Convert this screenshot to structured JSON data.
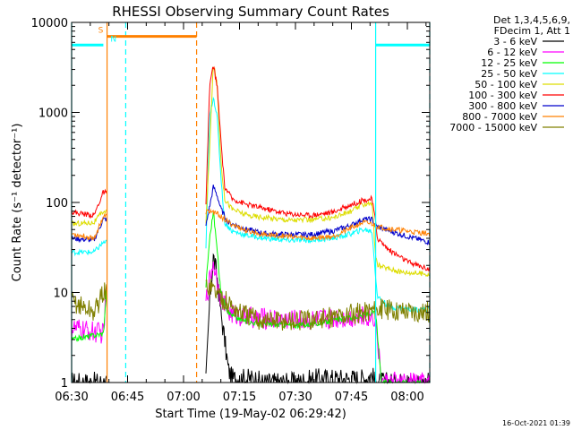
{
  "chart_data": {
    "type": "line",
    "title": "RHESSI Observing Summary Count Rates",
    "xlabel": "Start Time (19-May-02 06:29:42)",
    "ylabel": "Count Rate (s⁻¹ detector⁻¹)",
    "yscale": "log",
    "ylim": [
      1,
      10000
    ],
    "xlim_minutes_after_0630": [
      0,
      96
    ],
    "x_ticks": [
      {
        "label": "06:30",
        "m": 0
      },
      {
        "label": "06:45",
        "m": 15
      },
      {
        "label": "07:00",
        "m": 30
      },
      {
        "label": "07:15",
        "m": 45
      },
      {
        "label": "07:30",
        "m": 60
      },
      {
        "label": "07:45",
        "m": 75
      },
      {
        "label": "08:00",
        "m": 90
      }
    ],
    "y_ticks": [
      {
        "label": "1",
        "v": 1
      },
      {
        "label": "10",
        "v": 10
      },
      {
        "label": "100",
        "v": 100
      },
      {
        "label": "1000",
        "v": 1000
      },
      {
        "label": "10000",
        "v": 10000
      }
    ],
    "legend_header": [
      "Det 1,3,4,5,6,9,",
      "FDecim 1, Att 1"
    ],
    "legend_position": "right",
    "series": [
      {
        "name": "3 - 6 keV",
        "color": "#000000",
        "points": [
          [
            0,
            1
          ],
          [
            8.5,
            1
          ],
          [
            9.5,
            1
          ],
          [
            36,
            1
          ],
          [
            37,
            8
          ],
          [
            38,
            25
          ],
          [
            39,
            15
          ],
          [
            40,
            6
          ],
          [
            41,
            3
          ],
          [
            42,
            1.4
          ],
          [
            43,
            1.1
          ],
          [
            49,
            1.1
          ],
          [
            51,
            1
          ],
          [
            60,
            1
          ],
          [
            66,
            1.1
          ],
          [
            72,
            1.1
          ],
          [
            78,
            1.1
          ],
          [
            80.5,
            1.2
          ],
          [
            81.5,
            1
          ],
          [
            96,
            1
          ]
        ]
      },
      {
        "name": "6 - 12 keV",
        "color": "#ff00ff",
        "points": [
          [
            0,
            4
          ],
          [
            8.5,
            3.5
          ],
          [
            9.5,
            12
          ],
          [
            36,
            8
          ],
          [
            37,
            14
          ],
          [
            38,
            22
          ],
          [
            39,
            14
          ],
          [
            40,
            9
          ],
          [
            42,
            6
          ],
          [
            45,
            5.5
          ],
          [
            50,
            5.2
          ],
          [
            60,
            5
          ],
          [
            66,
            5
          ],
          [
            72,
            5.3
          ],
          [
            78,
            5.4
          ],
          [
            80.5,
            5.5
          ],
          [
            81.5,
            5.2
          ],
          [
            83,
            1
          ],
          [
            96,
            1
          ]
        ]
      },
      {
        "name": "12 - 25 keV",
        "color": "#00ff00",
        "points": [
          [
            0,
            3
          ],
          [
            8.5,
            3.5
          ],
          [
            9.5,
            12
          ],
          [
            36,
            12
          ],
          [
            37,
            40
          ],
          [
            38,
            80
          ],
          [
            39,
            30
          ],
          [
            40,
            10
          ],
          [
            42,
            6
          ],
          [
            45,
            5
          ],
          [
            50,
            4.5
          ],
          [
            60,
            4.3
          ],
          [
            66,
            4.5
          ],
          [
            72,
            5
          ],
          [
            78,
            5.5
          ],
          [
            80.5,
            6
          ],
          [
            81.5,
            6
          ],
          [
            83,
            1
          ],
          [
            96,
            1
          ]
        ]
      },
      {
        "name": "25 - 50 keV",
        "color": "#00ffff",
        "points": [
          [
            0,
            28
          ],
          [
            6,
            28
          ],
          [
            8.5,
            36
          ],
          [
            36,
            30
          ],
          [
            37,
            900
          ],
          [
            38,
            1500
          ],
          [
            39,
            900
          ],
          [
            40,
            200
          ],
          [
            41,
            60
          ],
          [
            43,
            48
          ],
          [
            47,
            43
          ],
          [
            52,
            40
          ],
          [
            58,
            38
          ],
          [
            64,
            38
          ],
          [
            70,
            40
          ],
          [
            75,
            45
          ],
          [
            78,
            50
          ],
          [
            80.5,
            48
          ],
          [
            81.5,
            15
          ],
          [
            82,
            9
          ],
          [
            85,
            7
          ],
          [
            90,
            6.5
          ],
          [
            96,
            6.5
          ]
        ]
      },
      {
        "name": "50 - 100 keV",
        "color": "#dddd00",
        "points": [
          [
            0,
            58
          ],
          [
            6,
            60
          ],
          [
            8.5,
            80
          ],
          [
            36,
            60
          ],
          [
            37,
            400
          ],
          [
            38,
            3500
          ],
          [
            39,
            2000
          ],
          [
            40,
            300
          ],
          [
            41,
            110
          ],
          [
            43,
            85
          ],
          [
            47,
            72
          ],
          [
            52,
            68
          ],
          [
            58,
            64
          ],
          [
            64,
            64
          ],
          [
            70,
            68
          ],
          [
            75,
            80
          ],
          [
            78,
            95
          ],
          [
            80.5,
            100
          ],
          [
            81.5,
            25
          ],
          [
            82,
            20
          ],
          [
            88,
            17
          ],
          [
            96,
            16
          ]
        ]
      },
      {
        "name": "100 - 300 keV",
        "color": "#ff0000",
        "points": [
          [
            0,
            78
          ],
          [
            6,
            72
          ],
          [
            8.5,
            130
          ],
          [
            36,
            90
          ],
          [
            37,
            2000
          ],
          [
            38,
            3300
          ],
          [
            39,
            2000
          ],
          [
            40,
            500
          ],
          [
            41,
            150
          ],
          [
            43,
            110
          ],
          [
            47,
            95
          ],
          [
            52,
            85
          ],
          [
            58,
            75
          ],
          [
            64,
            72
          ],
          [
            70,
            78
          ],
          [
            75,
            95
          ],
          [
            78,
            105
          ],
          [
            80.5,
            110
          ],
          [
            81.5,
            60
          ],
          [
            82,
            40
          ],
          [
            85,
            30
          ],
          [
            90,
            22
          ],
          [
            96,
            18
          ]
        ]
      },
      {
        "name": "300 - 800 keV",
        "color": "#0000cc",
        "points": [
          [
            0,
            40
          ],
          [
            6,
            38
          ],
          [
            8.5,
            65
          ],
          [
            36,
            55
          ],
          [
            37,
            90
          ],
          [
            38,
            150
          ],
          [
            39,
            120
          ],
          [
            40,
            85
          ],
          [
            42,
            60
          ],
          [
            47,
            50
          ],
          [
            52,
            45
          ],
          [
            58,
            44
          ],
          [
            64,
            44
          ],
          [
            70,
            48
          ],
          [
            75,
            56
          ],
          [
            78,
            65
          ],
          [
            80.5,
            65
          ],
          [
            81.5,
            55
          ],
          [
            84,
            50
          ],
          [
            90,
            42
          ],
          [
            96,
            36
          ]
        ]
      },
      {
        "name": "800 - 7000 keV",
        "color": "#ff8000",
        "points": [
          [
            0,
            45
          ],
          [
            6,
            40
          ],
          [
            8.5,
            70
          ],
          [
            36,
            78
          ],
          [
            37,
            80
          ],
          [
            38,
            78
          ],
          [
            39,
            75
          ],
          [
            40,
            70
          ],
          [
            42,
            60
          ],
          [
            47,
            48
          ],
          [
            52,
            44
          ],
          [
            58,
            42
          ],
          [
            64,
            40
          ],
          [
            70,
            42
          ],
          [
            75,
            52
          ],
          [
            78,
            60
          ],
          [
            80.5,
            58
          ],
          [
            81.5,
            55
          ],
          [
            84,
            52
          ],
          [
            90,
            48
          ],
          [
            96,
            45
          ]
        ]
      },
      {
        "name": "7000 - 15000 keV",
        "color": "#808000",
        "points": [
          [
            0,
            8
          ],
          [
            6,
            6
          ],
          [
            8.5,
            10
          ],
          [
            36,
            12
          ],
          [
            37,
            12
          ],
          [
            38,
            11
          ],
          [
            39,
            10
          ],
          [
            40,
            9
          ],
          [
            42,
            7.5
          ],
          [
            45,
            6
          ],
          [
            50,
            5
          ],
          [
            60,
            4.8
          ],
          [
            66,
            5
          ],
          [
            72,
            5.5
          ],
          [
            78,
            6
          ],
          [
            80.5,
            6.5
          ],
          [
            81.5,
            6.5
          ],
          [
            84,
            6.5
          ],
          [
            90,
            6.3
          ],
          [
            96,
            6
          ]
        ]
      }
    ],
    "annotations": [
      {
        "label": "S",
        "color": "#ff8000",
        "m_start": 9.5,
        "m_end": 33.5,
        "v": 7000
      },
      {
        "label": "N",
        "color": "#00ffff",
        "m_start": 0,
        "m_end": 8.5,
        "v": 5600
      },
      {
        "label": "",
        "color": "#00ffff",
        "m_start": 81.5,
        "m_end": 96,
        "v": 5600
      }
    ],
    "vertical_markers": [
      {
        "m": 0,
        "color": "#00ffff",
        "style": "solid"
      },
      {
        "m": 9.5,
        "color": "#ff8000",
        "style": "solid"
      },
      {
        "m": 14.5,
        "color": "#00ffff",
        "style": "dashed"
      },
      {
        "m": 33.5,
        "color": "#ff8000",
        "style": "dashed"
      },
      {
        "m": 81.5,
        "color": "#00ffff",
        "style": "solid"
      },
      {
        "m": 96,
        "color": "#00ffff",
        "style": "dashed"
      }
    ],
    "data_gaps_minutes": [
      [
        9.5,
        36
      ]
    ],
    "timestamp": "16-Oct-2021 01:39"
  }
}
